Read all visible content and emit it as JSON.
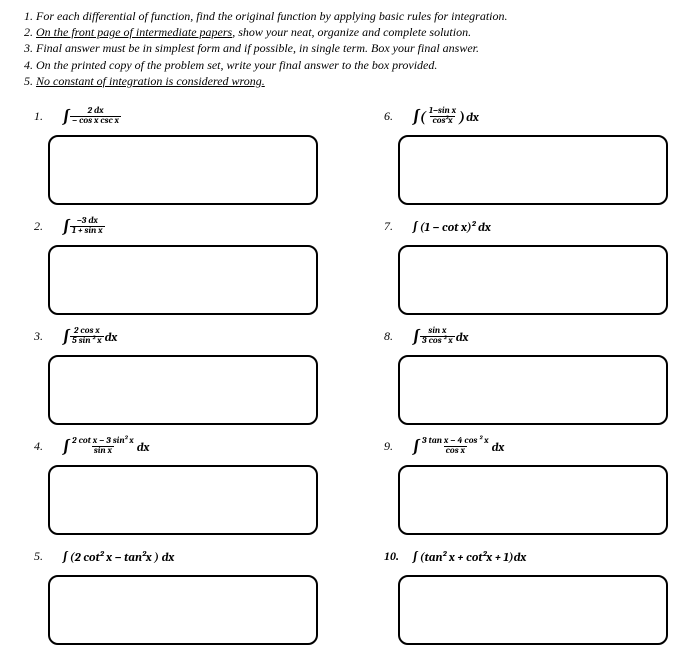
{
  "instructions": {
    "line1_prefix": "1. For each differential of function, find the original function by applying basic rules for integration.",
    "line2_prefix": "2. ",
    "line2_ul": "On the front page of intermediate papers",
    "line2_suffix": ", show your neat, organize and complete solution.",
    "line3": "3. Final answer must be in simplest form and if possible, in single term. Box your final answer.",
    "line4": "4. On the printed copy of the problem set, write your final answer to the box provided.",
    "line5_prefix": "5. ",
    "line5_ul": "No constant of integration is considered wrong."
  },
  "problems": {
    "p1": {
      "num": "1.",
      "frac_num": "2 dx",
      "frac_den": "− cos x csc x"
    },
    "p2": {
      "num": "2.",
      "frac_num": "−3 dx",
      "frac_den": "1 + sin x"
    },
    "p3": {
      "num": "3.",
      "frac_num": "2 cos x",
      "frac_den": "5 sin ² x",
      "suffix": " dx"
    },
    "p4": {
      "num": "4.",
      "frac_num": "2 cot x − 3 sin² x",
      "frac_den": "sin x",
      "suffix": " dx"
    },
    "p5": {
      "num": "5.",
      "text": "∫ (2 cot² x  −  tan²x ) dx"
    },
    "p6": {
      "num": "6.",
      "frac_num": "1−sin x",
      "frac_den": "cos²x",
      "suffix": " dx"
    },
    "p7": {
      "num": "7.",
      "text": "∫ (1 − cot x)² dx"
    },
    "p8": {
      "num": "8.",
      "frac_num": "sin x",
      "frac_den": "3 cos ² x",
      "suffix": " dx"
    },
    "p9": {
      "num": "9.",
      "frac_num": "3 tan x − 4 cos ² x",
      "frac_den": "cos x",
      "suffix": " dx"
    },
    "p10": {
      "num": "10.",
      "text": "∫ (tan² x + cot²x + 1)dx"
    }
  }
}
